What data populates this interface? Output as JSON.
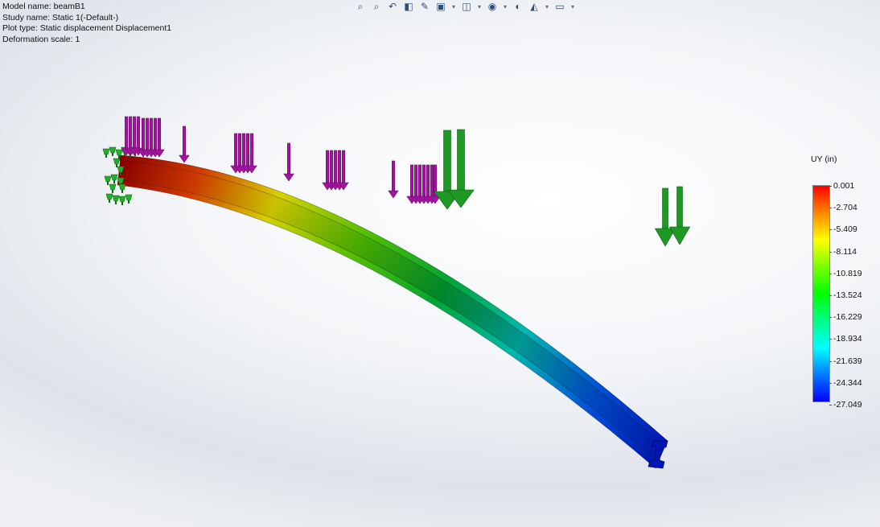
{
  "info": {
    "model_name": "Model name: beamB1",
    "study_name": "Study name: Static 1(-Default-)",
    "plot_type": "Plot type: Static displacement Displacement1",
    "deformation_scale": "Deformation scale: 1"
  },
  "toolbar": {
    "icons": [
      {
        "name": "zoom-to-fit-icon",
        "glyph": "⌕"
      },
      {
        "name": "zoom-to-area-icon",
        "glyph": "⌕"
      },
      {
        "name": "previous-view-icon",
        "glyph": "↶"
      },
      {
        "name": "section-view-icon",
        "glyph": "◧"
      },
      {
        "name": "dynamic-annotation-icon",
        "glyph": "✎"
      },
      {
        "name": "view-orientation-icon",
        "glyph": "▣"
      },
      {
        "name": "display-style-icon",
        "glyph": "◫"
      },
      {
        "name": "hide-show-items-icon",
        "glyph": "◉"
      },
      {
        "name": "edit-appearance-icon",
        "glyph": "◐"
      },
      {
        "name": "apply-scene-icon",
        "glyph": "◭"
      },
      {
        "name": "view-settings-icon",
        "glyph": "▭"
      }
    ]
  },
  "legend": {
    "title": "UY (in)",
    "values": [
      "0.001",
      "-2.704",
      "-5.409",
      "-8.114",
      "-10.819",
      "-13.524",
      "-16.229",
      "-18.934",
      "-21.639",
      "-24.344",
      "-27.049"
    ]
  },
  "colors": {
    "load_arrow": "#a3159f",
    "load_arrow_dark": "#6c0a6a",
    "remote_arrow": "#1e9a24",
    "remote_arrow_dark": "#0f5c13",
    "fixture": "#22b02a"
  }
}
